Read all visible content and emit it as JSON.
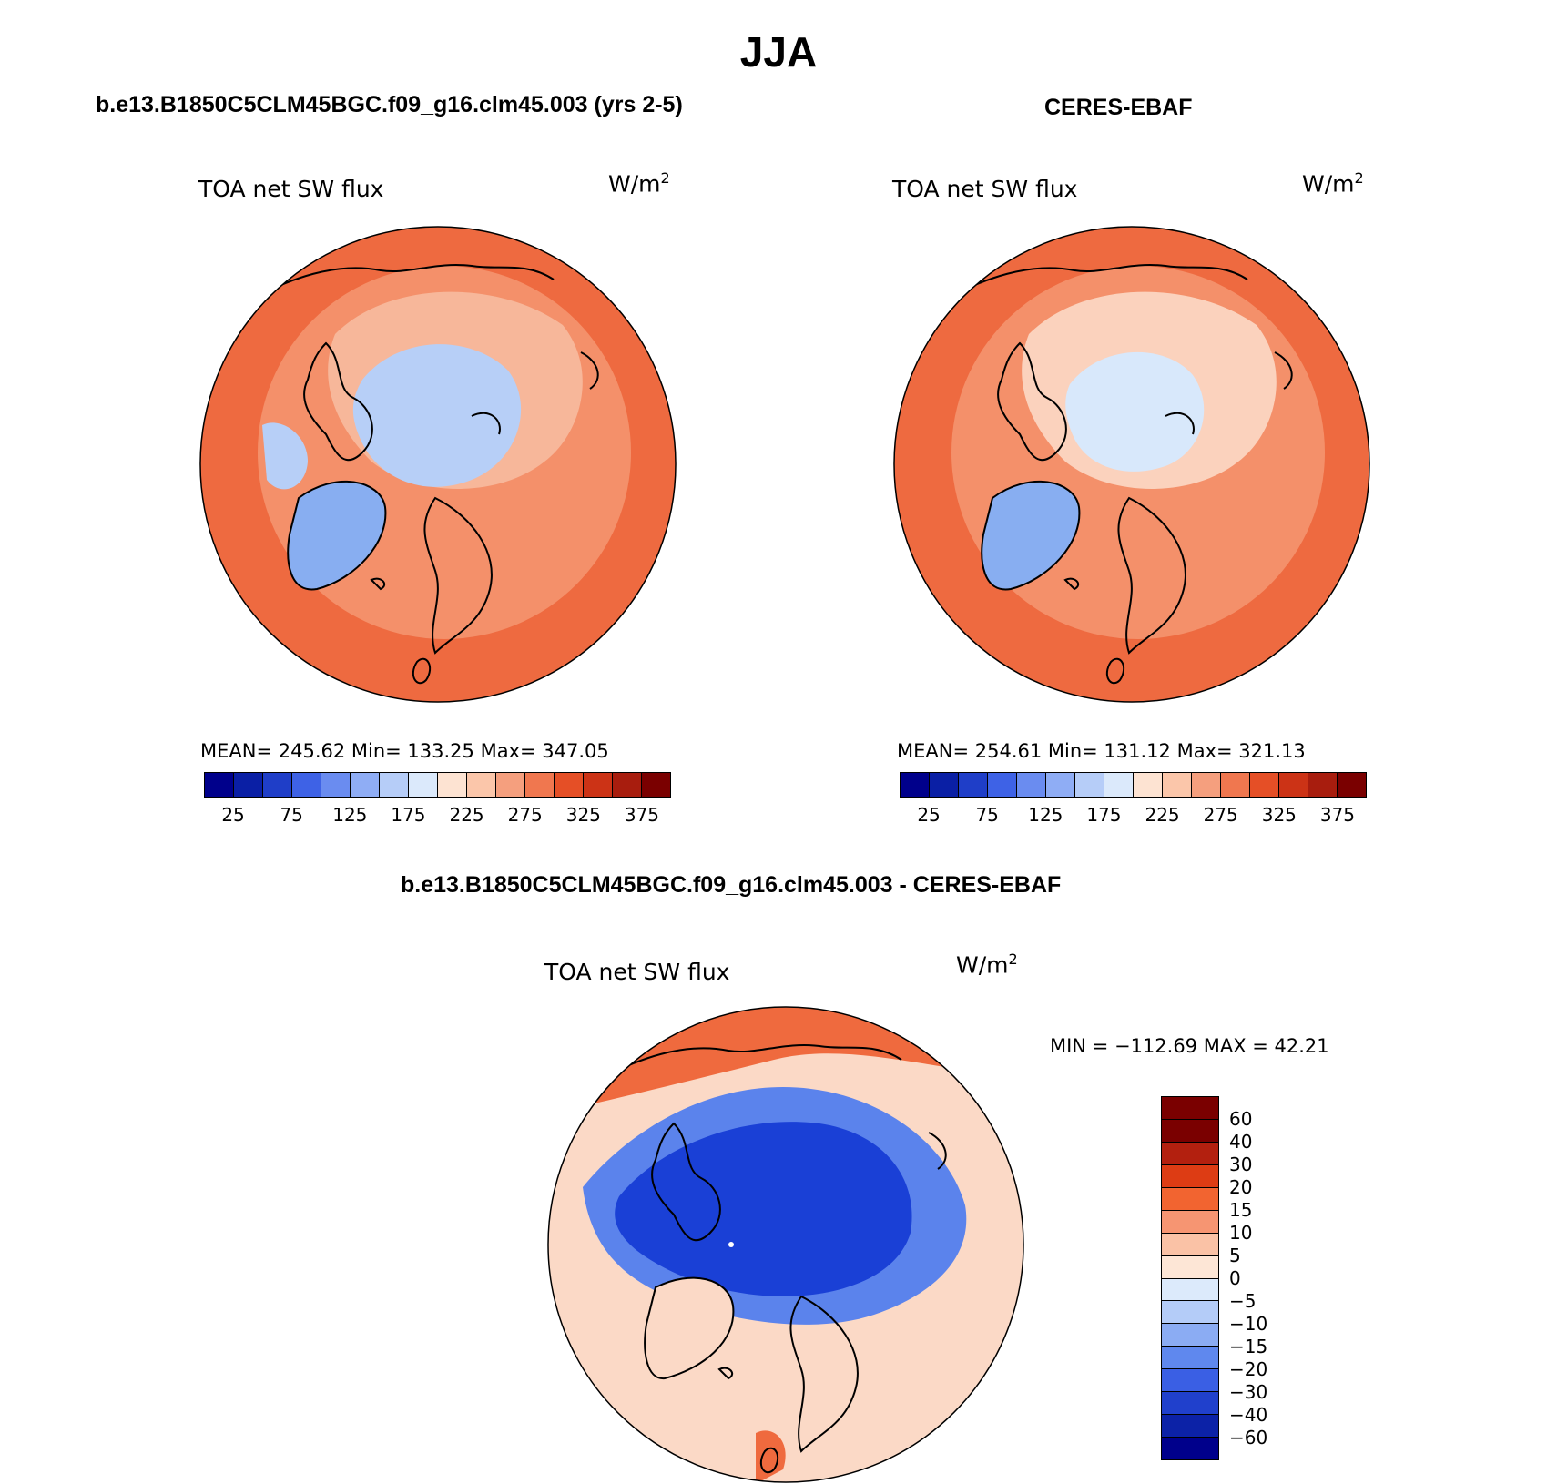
{
  "figure": {
    "title": "JJA"
  },
  "panels": [
    {
      "id": "model",
      "subtitle": "b.e13.B1850C5CLM45BGC.f09_g16.clm45.003 (yrs 2-5)",
      "variable": "TOA net SW flux",
      "unit": "W/m",
      "unit_exp": "2",
      "stats": "MEAN= 245.62   Min= 133.25   Max= 347.05",
      "mean": 245.62,
      "min": 133.25,
      "max": 347.05,
      "map_colors": {
        "ocean_outer": "#ee6a40",
        "ocean_mid": "#f4906a",
        "ice": "#b7cff7",
        "greenland": "#88aef1",
        "land_light": "#f7b79a"
      }
    },
    {
      "id": "obs",
      "subtitle": "CERES-EBAF",
      "variable": "TOA net SW flux",
      "unit": "W/m",
      "unit_exp": "2",
      "stats": "MEAN= 254.61   Min= 131.12   Max= 321.13",
      "mean": 254.61,
      "min": 131.12,
      "max": 321.13,
      "map_colors": {
        "ocean_outer": "#ee6a40",
        "ocean_mid": "#f4906a",
        "ice": "#d8e8fb",
        "greenland": "#88aef1",
        "land_light": "#fbd2bd"
      }
    }
  ],
  "abs_colorbar": {
    "colors": [
      "#00008b",
      "#0a1fa5",
      "#1f3ec8",
      "#3e62e6",
      "#6a8cf0",
      "#8fadf5",
      "#b6cdf8",
      "#dbe9fb",
      "#fde3d2",
      "#fbc6aa",
      "#f59f7e",
      "#f0774f",
      "#e54f26",
      "#cc3316",
      "#a81d0e",
      "#7a0000"
    ],
    "tick_labels": [
      "25",
      "75",
      "125",
      "175",
      "225",
      "275",
      "325",
      "375"
    ]
  },
  "diff_panel": {
    "subtitle": "b.e13.B1850C5CLM45BGC.f09_g16.clm45.003 - CERES-EBAF",
    "variable": "TOA net SW flux",
    "unit": "W/m",
    "unit_exp": "2",
    "stats": "MIN = −112.69  MAX =   42.21",
    "min": -112.69,
    "max": 42.21,
    "map_colors": {
      "ocean_outer": "#f3a483",
      "strong_neg": "#1a40d6",
      "mod_neg": "#5b83ec",
      "pos": "#ef6a3e",
      "weak": "#fbd9c6"
    }
  },
  "diff_colorbar": {
    "colors": [
      "#7a0000",
      "#b3200f",
      "#dd3c14",
      "#f26430",
      "#f69572",
      "#fac2a6",
      "#fde6d6",
      "#dceafb",
      "#b4ccf8",
      "#8bacf3",
      "#5f88ee",
      "#3a5fe4",
      "#2040cc",
      "#0c22a7",
      "#00008b"
    ],
    "tick_labels": [
      "60",
      "40",
      "30",
      "20",
      "15",
      "10",
      "5",
      "0",
      "−5",
      "−10",
      "−15",
      "−20",
      "−30",
      "−40",
      "−60"
    ]
  }
}
